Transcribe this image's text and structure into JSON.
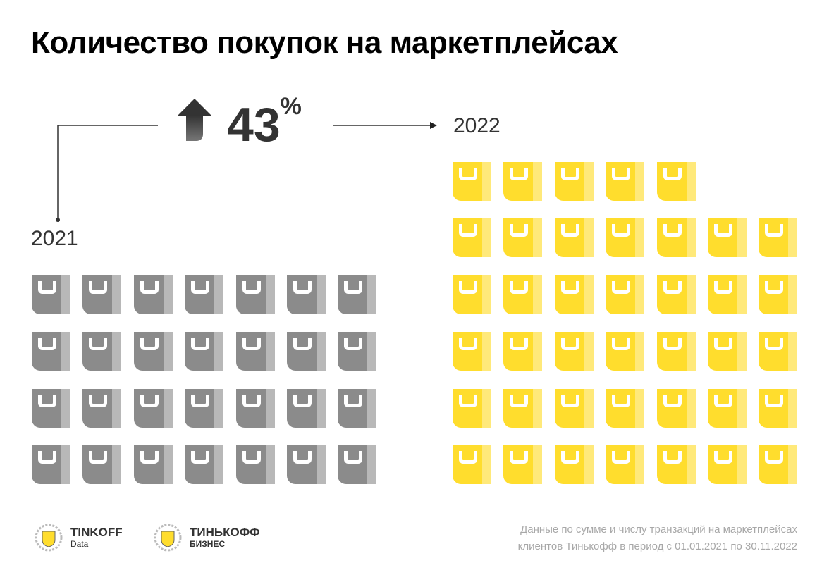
{
  "chart_data": {
    "type": "pictogram",
    "title": "Количество покупок на маркетплейсах",
    "series": [
      {
        "name": "2021",
        "value": 28,
        "color": "#8b8b8b",
        "columns": 7
      },
      {
        "name": "2022",
        "value": 40,
        "color": "#ffdd2d",
        "columns": 7
      }
    ],
    "change": {
      "value": "43",
      "unit": "%",
      "direction": "up"
    }
  },
  "footnote": [
    "Данные по сумме и числу транзакций на маркетплейсах",
    "клиентов Тинькофф в период с 01.01.2021 по 30.11.2022"
  ],
  "logos": [
    {
      "name": "TINKOFF",
      "sub": "Data"
    },
    {
      "name": "ТИНЬКОФФ",
      "sub": "БИЗНЕС"
    }
  ]
}
